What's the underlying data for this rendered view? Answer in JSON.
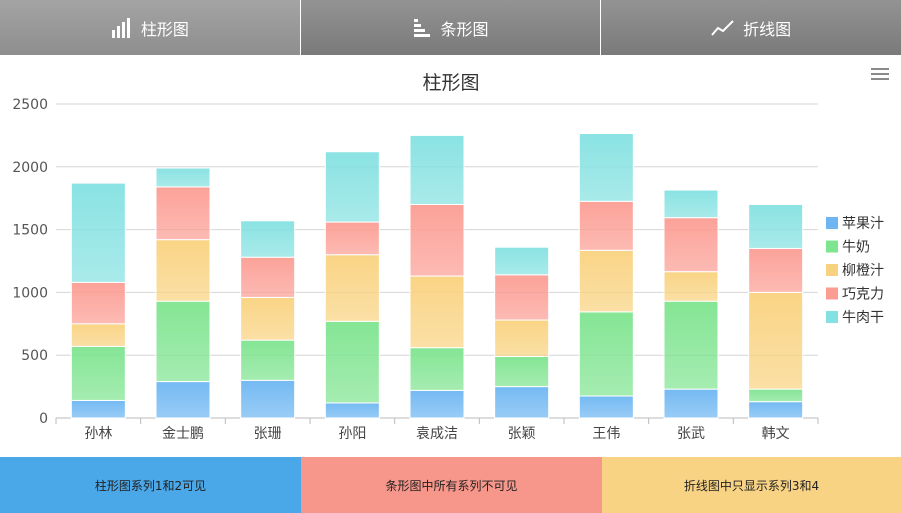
{
  "tabs": [
    {
      "label": "柱形图",
      "icon": "column-chart-icon"
    },
    {
      "label": "条形图",
      "icon": "bar-chart-icon"
    },
    {
      "label": "折线图",
      "icon": "line-chart-icon"
    }
  ],
  "active_tab": 0,
  "menu_icon": "hamburger-menu-icon",
  "footer": {
    "buttons": [
      {
        "label": "柱形图系列1和2可见",
        "color": "#4aa7e8"
      },
      {
        "label": "条形图中所有系列不可见",
        "color": "#f7968a"
      },
      {
        "label": "折线图中只显示系列3和4",
        "color": "#f9d384"
      }
    ]
  },
  "chart_data": {
    "type": "bar",
    "stacked": true,
    "title": "柱形图",
    "categories": [
      "孙林",
      "金士鹏",
      "张珊",
      "孙阳",
      "袁成洁",
      "张颖",
      "王伟",
      "张武",
      "韩文"
    ],
    "ylim": [
      0,
      2500
    ],
    "yticks": [
      0,
      500,
      1000,
      1500,
      2000,
      2500
    ],
    "grid": true,
    "legend_position": "right",
    "series": [
      {
        "name": "苹果汁",
        "color": "#6db6f2",
        "values": [
          140,
          290,
          300,
          120,
          220,
          250,
          175,
          230,
          130
        ]
      },
      {
        "name": "牛奶",
        "color": "#7ee48f",
        "values": [
          430,
          640,
          320,
          650,
          340,
          240,
          670,
          700,
          100
        ]
      },
      {
        "name": "柳橙汁",
        "color": "#f9d27f",
        "values": [
          180,
          490,
          340,
          530,
          570,
          290,
          490,
          235,
          770
        ]
      },
      {
        "name": "巧克力",
        "color": "#fb9d93",
        "values": [
          330,
          420,
          320,
          260,
          570,
          360,
          390,
          430,
          350
        ]
      },
      {
        "name": "牛肉干",
        "color": "#84e1e1",
        "values": [
          790,
          150,
          290,
          560,
          550,
          220,
          540,
          220,
          350
        ]
      }
    ]
  }
}
